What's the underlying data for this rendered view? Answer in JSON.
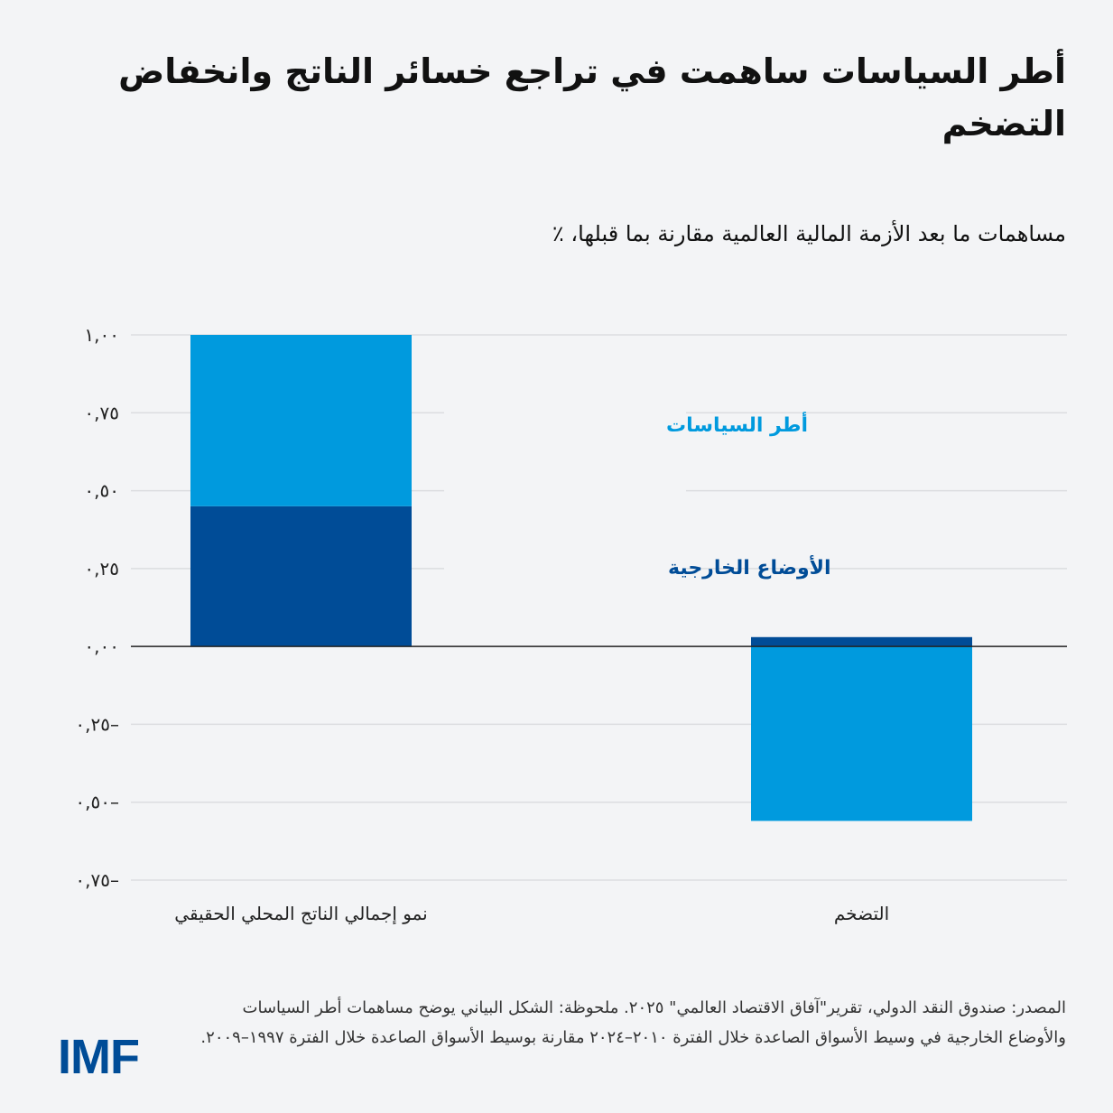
{
  "colors": {
    "policy": "#009ADE",
    "external": "#004C97",
    "grid": "#dcdde0",
    "zero": "#222222"
  },
  "chart_data": {
    "type": "bar",
    "stacked": true,
    "title": "أطر السياسات ساهمت في تراجع خسائر الناتج وانخفاض التضخم",
    "subtitle": "مساهمات ما بعد الأزمة المالية العالمية مقارنة بما قبلها، ٪",
    "categories": [
      "نمو إجمالي الناتج المحلي الحقيقي",
      "التضخم"
    ],
    "series": [
      {
        "name": "الأوضاع الخارجية",
        "values": [
          0.45,
          0.03
        ]
      },
      {
        "name": "أطر السياسات",
        "values": [
          0.55,
          -0.56
        ]
      }
    ],
    "ylim": [
      -0.75,
      1.0
    ],
    "yticks": [
      1.0,
      0.75,
      0.5,
      0.25,
      0.0,
      -0.25,
      -0.5,
      -0.75
    ],
    "ytick_labels": [
      "١,٠٠",
      "٠,٧٥",
      "٠,٥٠",
      "٠,٢٥",
      "٠,٠٠",
      "٠,٢٥–",
      "٠,٥٠–",
      "٠,٧٥–"
    ],
    "grid": true,
    "legend_placement": "inline-center"
  },
  "note": "المصدر: صندوق النقد الدولي، تقرير\"آفاق الاقتصاد العالمي\" ٢٠٢٥. ملحوظة: الشكل البياني يوضح مساهمات أطر السياسات والأوضاع الخارجية في وسيط الأسواق الصاعدة خلال الفترة ٢٠١٠–٢٠٢٤ مقارنة بوسيط الأسواق الصاعدة خلال الفترة ١٩٩٧–٢٠٠٩.",
  "logo": "IMF"
}
